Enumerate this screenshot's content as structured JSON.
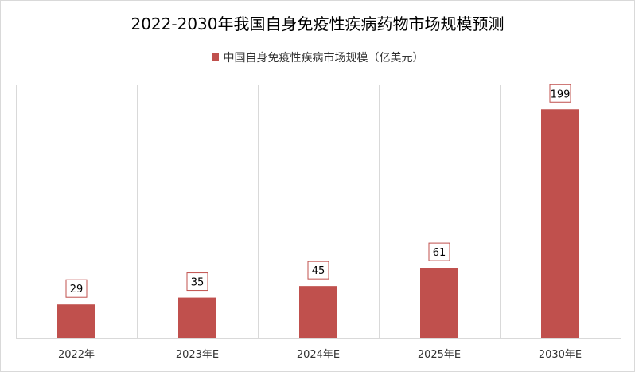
{
  "chart_data": {
    "type": "bar",
    "title": "2022-2030年我国自身免疫性疾病药物市场规模预测",
    "categories": [
      "2022年",
      "2023年E",
      "2024年E",
      "2025年E",
      "2030年E"
    ],
    "series": [
      {
        "name": "中国自身免疫性疾病市场规模（亿美元）",
        "values": [
          29,
          35,
          45,
          61,
          199
        ],
        "color": "#c0504d"
      }
    ],
    "ylim": [
      0,
      220
    ],
    "xlabel": "",
    "ylabel": "",
    "grid": "vertical",
    "legend": "top-center",
    "data_labels": true
  }
}
